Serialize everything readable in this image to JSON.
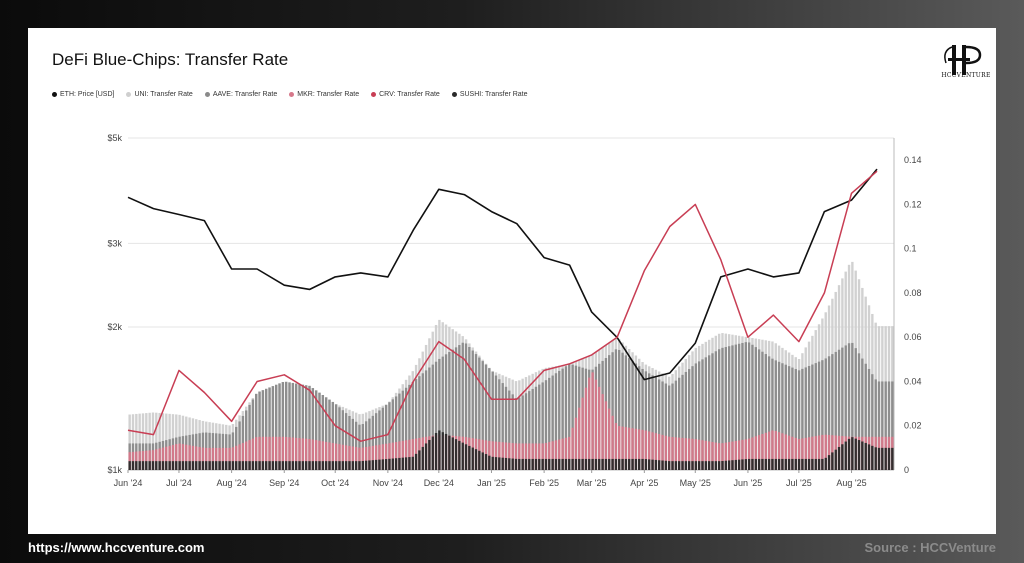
{
  "title": "DeFi Blue-Chips: Transfer Rate",
  "brand": {
    "logo_text": "HCCVENTURE"
  },
  "footer": {
    "url": "https://www.hccventure.com",
    "source": "Source : HCCVenture"
  },
  "chart_data": {
    "type": "line",
    "title": "DeFi Blue-Chips: Transfer Rate",
    "legend_placement": "top-left",
    "grid": "horizontal",
    "x": [
      "2024-06-01",
      "2024-06-16",
      "2024-07-01",
      "2024-07-16",
      "2024-08-01",
      "2024-08-16",
      "2024-09-01",
      "2024-09-16",
      "2024-10-01",
      "2024-10-16",
      "2024-11-01",
      "2024-11-16",
      "2024-12-01",
      "2024-12-16",
      "2025-01-01",
      "2025-01-16",
      "2025-02-01",
      "2025-02-16",
      "2025-03-01",
      "2025-03-16",
      "2025-04-01",
      "2025-04-16",
      "2025-05-01",
      "2025-05-16",
      "2025-06-01",
      "2025-06-16",
      "2025-07-01",
      "2025-07-16",
      "2025-08-01",
      "2025-08-16"
    ],
    "x_tick_labels": [
      "Jun '24",
      "Jul '24",
      "Aug '24",
      "Sep '24",
      "Oct '24",
      "Nov '24",
      "Dec '24",
      "Jan '25",
      "Feb '25",
      "Mar '25",
      "Apr '25",
      "May '25",
      "Jun '25",
      "Jul '25",
      "Aug '25"
    ],
    "y_left": {
      "label": "",
      "scale": "log",
      "range": [
        1000,
        5000
      ],
      "tick_labels": [
        "$1k",
        "$2k",
        "$3k",
        "$5k"
      ],
      "tick_values": [
        1000,
        2000,
        3000,
        5000
      ]
    },
    "y_right": {
      "label": "",
      "range": [
        0,
        0.15
      ],
      "tick_labels": [
        "0",
        "0.02",
        "0.04",
        "0.06",
        "0.08",
        "0.1",
        "0.12",
        "0.14"
      ],
      "tick_values": [
        0,
        0.02,
        0.04,
        0.06,
        0.08,
        0.1,
        0.12,
        0.14
      ]
    },
    "series": [
      {
        "name": "ETH: Price [USD]",
        "axis": "left",
        "kind": "line",
        "color": "#111111",
        "values": [
          3750,
          3550,
          3450,
          3350,
          2650,
          2650,
          2450,
          2400,
          2550,
          2600,
          2550,
          3200,
          3900,
          3800,
          3500,
          3300,
          2800,
          2700,
          2150,
          1900,
          1550,
          1600,
          1850,
          2550,
          2650,
          2550,
          2600,
          3500,
          3700,
          4300
        ]
      },
      {
        "name": "UNI: Transfer Rate",
        "axis": "right",
        "kind": "bars",
        "color": "#cfcfcf",
        "values": [
          0.025,
          0.026,
          0.025,
          0.022,
          0.02,
          0.035,
          0.04,
          0.038,
          0.03,
          0.025,
          0.03,
          0.045,
          0.068,
          0.06,
          0.045,
          0.04,
          0.046,
          0.048,
          0.052,
          0.06,
          0.048,
          0.042,
          0.055,
          0.062,
          0.06,
          0.058,
          0.05,
          0.07,
          0.095,
          0.065
        ]
      },
      {
        "name": "AAVE: Transfer Rate",
        "axis": "right",
        "kind": "bars",
        "color": "#8a8a8a",
        "values": [
          0.012,
          0.012,
          0.015,
          0.017,
          0.016,
          0.035,
          0.04,
          0.038,
          0.03,
          0.02,
          0.03,
          0.04,
          0.05,
          0.058,
          0.045,
          0.032,
          0.04,
          0.048,
          0.045,
          0.055,
          0.045,
          0.038,
          0.048,
          0.055,
          0.058,
          0.05,
          0.045,
          0.05,
          0.058,
          0.04
        ]
      },
      {
        "name": "MKR: Transfer Rate",
        "axis": "right",
        "kind": "bars",
        "color": "#d6788a",
        "values": [
          0.008,
          0.009,
          0.012,
          0.01,
          0.01,
          0.015,
          0.015,
          0.014,
          0.012,
          0.01,
          0.012,
          0.014,
          0.016,
          0.015,
          0.013,
          0.012,
          0.012,
          0.015,
          0.045,
          0.02,
          0.018,
          0.015,
          0.014,
          0.012,
          0.014,
          0.018,
          0.014,
          0.016,
          0.015,
          0.015
        ]
      },
      {
        "name": "CRV: Transfer Rate",
        "axis": "right",
        "kind": "line",
        "color": "#c83e54",
        "values": [
          0.018,
          0.016,
          0.045,
          0.035,
          0.022,
          0.04,
          0.043,
          0.036,
          0.02,
          0.013,
          0.016,
          0.04,
          0.058,
          0.05,
          0.032,
          0.032,
          0.045,
          0.048,
          0.052,
          0.06,
          0.09,
          0.11,
          0.12,
          0.095,
          0.06,
          0.07,
          0.058,
          0.08,
          0.125,
          0.135
        ]
      },
      {
        "name": "SUSHI: Transfer Rate",
        "axis": "right",
        "kind": "bars",
        "color": "#2a2a2a",
        "values": [
          0.004,
          0.004,
          0.004,
          0.004,
          0.004,
          0.004,
          0.004,
          0.004,
          0.004,
          0.004,
          0.005,
          0.006,
          0.018,
          0.012,
          0.006,
          0.005,
          0.005,
          0.005,
          0.005,
          0.005,
          0.005,
          0.004,
          0.004,
          0.004,
          0.005,
          0.005,
          0.005,
          0.005,
          0.015,
          0.01
        ]
      }
    ]
  }
}
